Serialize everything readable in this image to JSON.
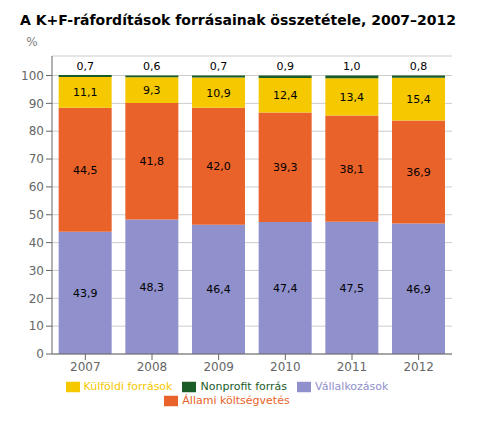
{
  "chart_data": {
    "type": "bar",
    "title": "A K+F-ráfordítások forrásainak összetétele, 2007–2012",
    "ylabel": "%",
    "categories": [
      "2007",
      "2008",
      "2009",
      "2010",
      "2011",
      "2012"
    ],
    "series": [
      {
        "name": "Vállalkozások",
        "color": "#9090cc",
        "values": [
          43.9,
          48.3,
          46.4,
          47.4,
          47.5,
          46.9
        ],
        "value_labels": [
          "43,9",
          "48,3",
          "46,4",
          "47,4",
          "47,5",
          "46,9"
        ]
      },
      {
        "name": "Állami költségvetés",
        "color": "#e8622a",
        "values": [
          44.5,
          41.8,
          42.0,
          39.3,
          38.1,
          36.9
        ],
        "value_labels": [
          "44,5",
          "41,8",
          "42,0",
          "39,3",
          "38,1",
          "36,9"
        ]
      },
      {
        "name": "Külföldi források",
        "color": "#f5c800",
        "values": [
          11.1,
          9.3,
          10.9,
          12.4,
          13.4,
          15.4
        ],
        "value_labels": [
          "11,1",
          "9,3",
          "10,9",
          "12,4",
          "13,4",
          "15,4"
        ]
      },
      {
        "name": "Nonprofit forrás",
        "color": "#1a5c28",
        "values": [
          0.7,
          0.6,
          0.7,
          0.9,
          1.0,
          0.8
        ],
        "value_labels": [
          "0,7",
          "0,6",
          "0,7",
          "0,9",
          "1,0",
          "0,8"
        ]
      }
    ],
    "ylim": [
      0,
      107
    ],
    "yticks": [
      0,
      10,
      20,
      30,
      40,
      50,
      60,
      70,
      80,
      90,
      100
    ],
    "stacked": true,
    "data_labels": true,
    "grid": true,
    "legend": "bottom"
  }
}
